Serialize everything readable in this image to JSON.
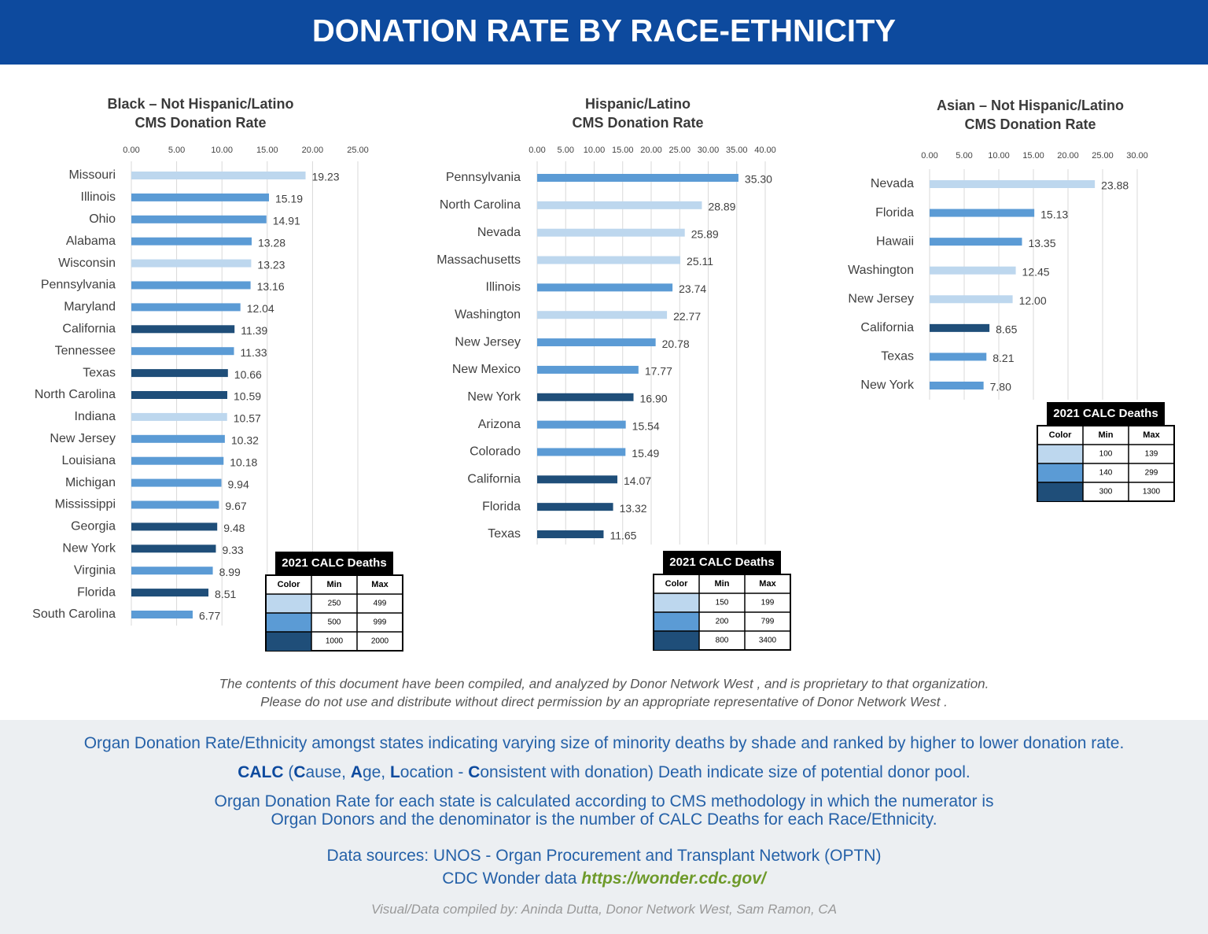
{
  "header": {
    "title": "DONATION RATE BY RACE-ETHNICITY"
  },
  "chart_data": [
    {
      "type": "bar",
      "orientation": "horizontal",
      "title": "Black – Not Hispanic/Latino",
      "subtitle": "CMS Donation Rate",
      "categories": [
        "Missouri",
        "Illinois",
        "Ohio",
        "Alabama",
        "Wisconsin",
        "Pennsylvania",
        "Maryland",
        "California",
        "Tennessee",
        "Texas",
        "North Carolina",
        "Indiana",
        "New Jersey",
        "Louisiana",
        "Michigan",
        "Mississippi",
        "Georgia",
        "New York",
        "Virginia",
        "Florida",
        "South Carolina"
      ],
      "values": [
        19.23,
        15.19,
        14.91,
        13.28,
        13.23,
        13.16,
        12.04,
        11.39,
        11.33,
        10.66,
        10.59,
        10.57,
        10.32,
        10.18,
        9.94,
        9.67,
        9.48,
        9.33,
        8.99,
        8.51,
        6.77
      ],
      "value_labels": [
        "19.23",
        "15.19",
        "14.91",
        "13.28",
        "13.23",
        "13.16",
        "12.04",
        "11.39",
        "11.33",
        "10.66",
        "10.59",
        "10.57",
        "10.32",
        "10.18",
        "9.94",
        "9.67",
        "9.48",
        "9.33",
        "8.99",
        "8.51",
        "6.77"
      ],
      "colors": [
        "#bdd7ee",
        "#5b9bd5",
        "#5b9bd5",
        "#5b9bd5",
        "#bdd7ee",
        "#5b9bd5",
        "#5b9bd5",
        "#1f4e79",
        "#5b9bd5",
        "#1f4e79",
        "#1f4e79",
        "#bdd7ee",
        "#5b9bd5",
        "#5b9bd5",
        "#5b9bd5",
        "#5b9bd5",
        "#1f4e79",
        "#1f4e79",
        "#5b9bd5",
        "#1f4e79",
        "#5b9bd5"
      ],
      "xlim": [
        0,
        25
      ],
      "xticks": [
        {
          "value": 0,
          "label": "0.00"
        },
        {
          "value": 5,
          "label": "5.00"
        },
        {
          "value": 10,
          "label": "10.00"
        },
        {
          "value": 15,
          "label": "15.00"
        },
        {
          "value": 20,
          "label": "20.00"
        },
        {
          "value": 25,
          "label": "25.00"
        }
      ],
      "grid": true,
      "legend": {
        "title": "2021 CALC Deaths",
        "header": [
          "Color",
          "Min",
          "Max"
        ],
        "rows": [
          {
            "color": "#bdd7ee",
            "min": 250,
            "max": 499
          },
          {
            "color": "#5b9bd5",
            "min": 500,
            "max": 999
          },
          {
            "color": "#1f4e79",
            "min": 1000,
            "max": 2000
          }
        ]
      }
    },
    {
      "type": "bar",
      "orientation": "horizontal",
      "title": "Hispanic/Latino",
      "subtitle": "CMS Donation Rate",
      "categories": [
        "Pennsylvania",
        "North Carolina",
        "Nevada",
        "Massachusetts",
        "Illinois",
        "Washington",
        "New Jersey",
        "New Mexico",
        "New York",
        "Arizona",
        "Colorado",
        "California",
        "Florida",
        "Texas"
      ],
      "values": [
        35.3,
        28.89,
        25.89,
        25.11,
        23.74,
        22.77,
        20.78,
        17.77,
        16.9,
        15.54,
        15.49,
        14.07,
        13.32,
        11.65
      ],
      "value_labels": [
        "35.30",
        "28.89",
        "25.89",
        "25.11",
        "23.74",
        "22.77",
        "20.78",
        "17.77",
        "16.90",
        "15.54",
        "15.49",
        "14.07",
        "13.32",
        "11.65"
      ],
      "colors": [
        "#5b9bd5",
        "#bdd7ee",
        "#bdd7ee",
        "#bdd7ee",
        "#5b9bd5",
        "#bdd7ee",
        "#5b9bd5",
        "#5b9bd5",
        "#1f4e79",
        "#5b9bd5",
        "#5b9bd5",
        "#1f4e79",
        "#1f4e79",
        "#1f4e79"
      ],
      "xlim": [
        0,
        40
      ],
      "xticks": [
        {
          "value": 0,
          "label": "0.00"
        },
        {
          "value": 5,
          "label": "5.00"
        },
        {
          "value": 10,
          "label": "10.00"
        },
        {
          "value": 15,
          "label": "15.00"
        },
        {
          "value": 20,
          "label": "20.00"
        },
        {
          "value": 25,
          "label": "25.00"
        },
        {
          "value": 30,
          "label": "30.00"
        },
        {
          "value": 35,
          "label": "35.00"
        },
        {
          "value": 40,
          "label": "40.00"
        }
      ],
      "grid": true,
      "legend": {
        "title": "2021 CALC Deaths",
        "header": [
          "Color",
          "Min",
          "Max"
        ],
        "rows": [
          {
            "color": "#bdd7ee",
            "min": 150,
            "max": 199
          },
          {
            "color": "#5b9bd5",
            "min": 200,
            "max": 799
          },
          {
            "color": "#1f4e79",
            "min": 800,
            "max": 3400
          }
        ]
      }
    },
    {
      "type": "bar",
      "orientation": "horizontal",
      "title": "Asian – Not Hispanic/Latino",
      "subtitle": "CMS Donation Rate",
      "categories": [
        "Nevada",
        "Florida",
        "Hawaii",
        "Washington",
        "New Jersey",
        "California",
        "Texas",
        "New York"
      ],
      "values": [
        23.88,
        15.13,
        13.35,
        12.45,
        12.0,
        8.65,
        8.21,
        7.8
      ],
      "value_labels": [
        "23.88",
        "15.13",
        "13.35",
        "12.45",
        "12.00",
        "8.65",
        "8.21",
        "7.80"
      ],
      "colors": [
        "#bdd7ee",
        "#5b9bd5",
        "#5b9bd5",
        "#bdd7ee",
        "#bdd7ee",
        "#1f4e79",
        "#5b9bd5",
        "#5b9bd5"
      ],
      "xlim": [
        0,
        30
      ],
      "xticks": [
        {
          "value": 0,
          "label": "0.00"
        },
        {
          "value": 5,
          "label": "5.00"
        },
        {
          "value": 10,
          "label": "10.00"
        },
        {
          "value": 15,
          "label": "15.00"
        },
        {
          "value": 20,
          "label": "20.00"
        },
        {
          "value": 25,
          "label": "25.00"
        },
        {
          "value": 30,
          "label": "30.00"
        }
      ],
      "grid": true,
      "legend": {
        "title": "2021 CALC Deaths",
        "header": [
          "Color",
          "Min",
          "Max"
        ],
        "rows": [
          {
            "color": "#bdd7ee",
            "min": 100,
            "max": 139
          },
          {
            "color": "#5b9bd5",
            "min": 140,
            "max": 299
          },
          {
            "color": "#1f4e79",
            "min": 300,
            "max": 1300
          }
        ]
      }
    }
  ],
  "disclaimer": [
    "The contents of this document have been compiled, and analyzed by Donor Network West , and is proprietary to that organization.",
    "Please do not use and distribute without direct permission by an appropriate representative of Donor Network West ."
  ],
  "notes": {
    "summary": "Organ Donation Rate/Ethnicity amongst states indicating varying size of minority deaths by shade and ranked by higher to lower donation rate.",
    "calc": [
      {
        "text": "CALC",
        "bold": true
      },
      {
        "text": " (",
        "bold": false
      },
      {
        "text": "C",
        "bold": true
      },
      {
        "text": "ause, ",
        "bold": false
      },
      {
        "text": "A",
        "bold": true
      },
      {
        "text": "ge, ",
        "bold": false
      },
      {
        "text": "L",
        "bold": true
      },
      {
        "text": "ocation - ",
        "bold": false
      },
      {
        "text": "C",
        "bold": true
      },
      {
        "text": "onsistent with donation) Death indicate size of potential donor pool.",
        "bold": false
      }
    ],
    "method": [
      "Organ Donation Rate for each state is calculated according to CMS methodology in which the numerator is",
      "Organ Donors and the denominator is the number of CALC Deaths for each Race/Ethnicity."
    ],
    "sources": "Data sources: UNOS - Organ Procurement and Transplant Network (OPTN)",
    "cdc": "CDC Wonder data ",
    "link": "https://wonder.cdc.gov/",
    "credit": "Visual/Data compiled by: Aninda Dutta, Donor Network West, Sam Ramon, CA"
  }
}
